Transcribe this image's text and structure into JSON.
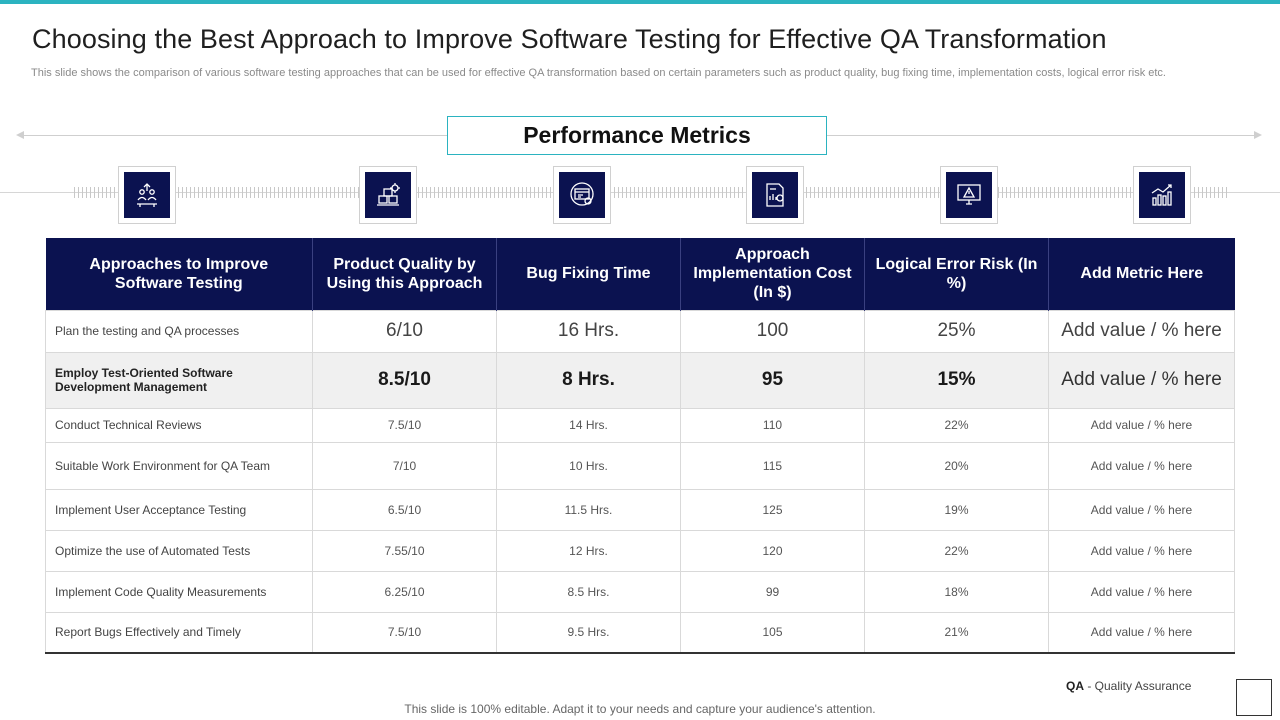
{
  "title": "Choosing the Best Approach to Improve Software Testing for Effective QA Transformation",
  "subtitle": "This slide shows the comparison of various software testing approaches that can be used for effective QA transformation based on certain parameters such as product quality, bug fixing time, implementation costs, logical error risk etc.",
  "metrics_heading": "Performance Metrics",
  "icons": [
    "team-growth-icon",
    "boxes-gear-icon",
    "browser-gear-icon",
    "report-gear-icon",
    "monitor-warning-icon",
    "bar-chart-trend-icon"
  ],
  "table": {
    "headers": [
      "Approaches to Improve Software Testing",
      "Product Quality by Using this Approach",
      "Bug Fixing Time",
      "Approach Implementation Cost (In $)",
      "Logical Error Risk (In %)",
      "Add Metric Here"
    ],
    "rows": [
      [
        "Plan the testing and QA  processes",
        "6/10",
        "16 Hrs.",
        "100",
        "25%",
        "Add value / % here"
      ],
      [
        "Employ  Test-Oriented Software Development Management",
        "8.5/10",
        "8 Hrs.",
        "95",
        "15%",
        "Add value / % here"
      ],
      [
        "Conduct Technical Reviews",
        "7.5/10",
        "14 Hrs.",
        "110",
        "22%",
        "Add value / % here"
      ],
      [
        "Suitable Work Environment for QA Team",
        "7/10",
        "10 Hrs.",
        "115",
        "20%",
        "Add value / % here"
      ],
      [
        "Implement User Acceptance Testing",
        "6.5/10",
        "11.5 Hrs.",
        "125",
        "19%",
        "Add value / % here"
      ],
      [
        "Optimize the use of Automated Tests",
        "7.55/10",
        "12 Hrs.",
        "120",
        "22%",
        "Add value / % here"
      ],
      [
        "Implement Code Quality Measurements",
        "6.25/10",
        "8.5 Hrs.",
        "99",
        "18%",
        "Add value / % here"
      ],
      [
        "Report Bugs Effectively  and Timely",
        "7.5/10",
        "9.5 Hrs.",
        "105",
        "21%",
        "Add value / % here"
      ]
    ]
  },
  "legend": {
    "abbr": "QA",
    "separator": " - ",
    "meaning": "Quality Assurance"
  },
  "footer": "This slide is 100% editable. Adapt it to your needs and capture your audience's attention.",
  "colors": {
    "accent": "#2bb3c0",
    "navy": "#0b1250",
    "highlight_row": "#f0f0f0"
  }
}
